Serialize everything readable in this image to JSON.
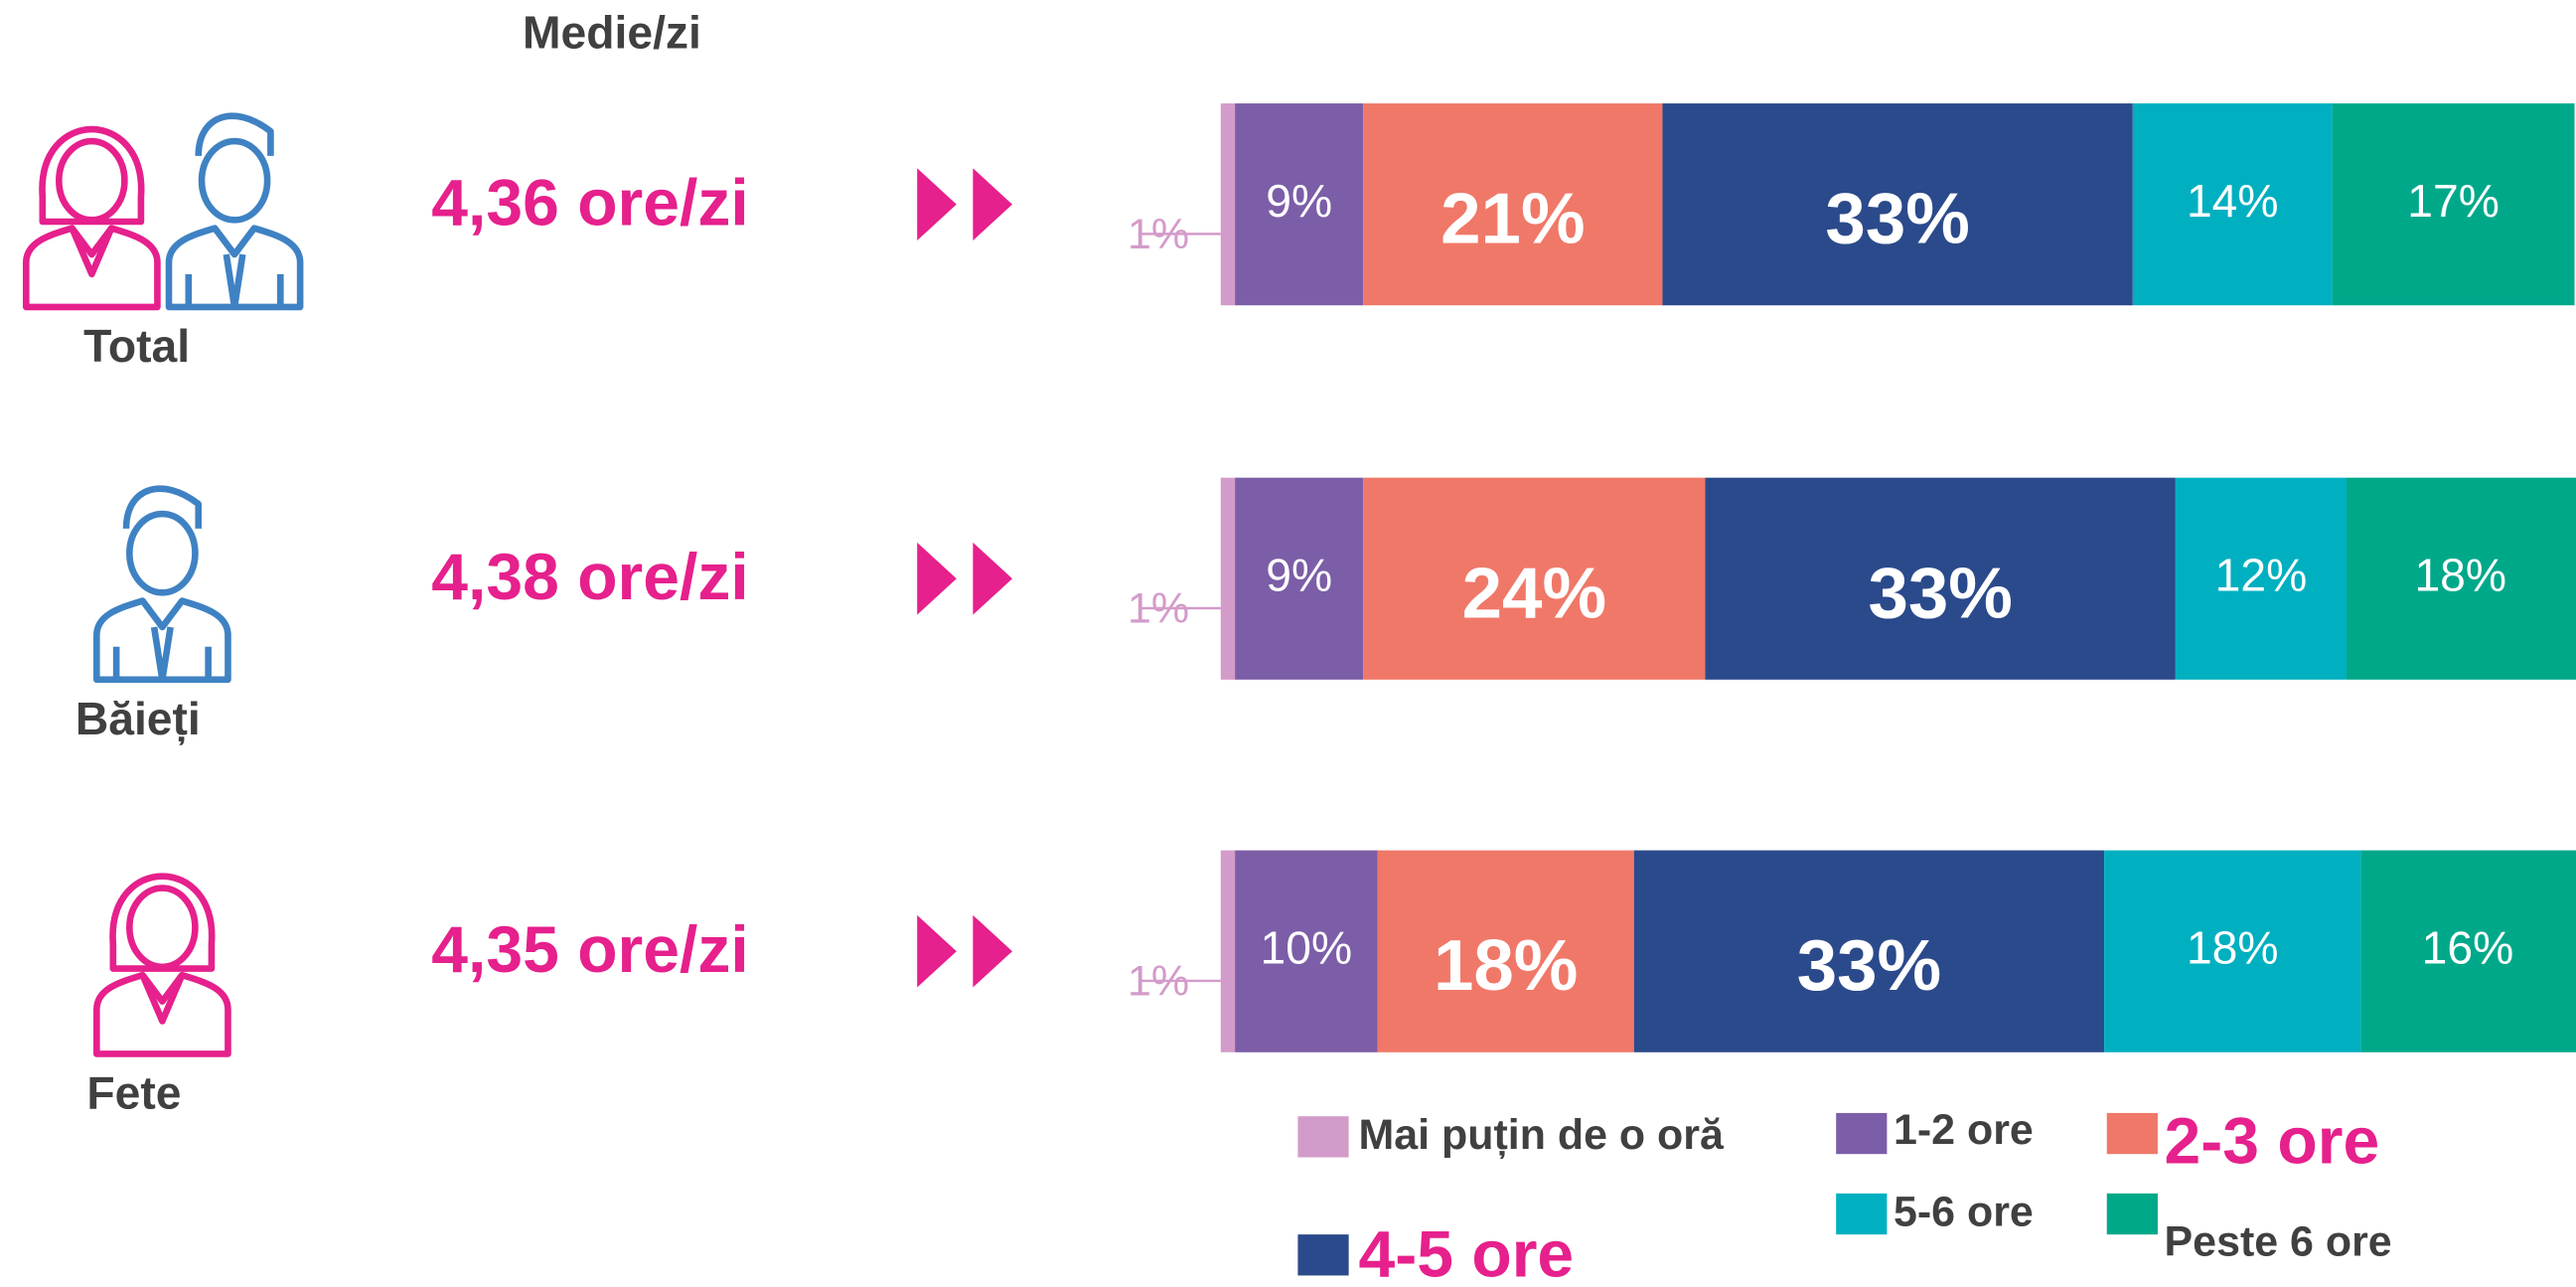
{
  "chart_data": {
    "type": "stacked-barh",
    "header": "Medie/zi",
    "categories": [
      "Total",
      "Băieți",
      "Fete"
    ],
    "averages": [
      "4,36 ore/zi",
      "4,38 ore/zi",
      "4,35 ore/zi"
    ],
    "xlim": [
      0,
      95
    ],
    "series": [
      {
        "name": "Mai puțin de o oră",
        "color": "#d39bc9",
        "values": [
          1,
          1,
          1
        ],
        "value_labels": [
          "1%",
          "1%",
          "1%"
        ]
      },
      {
        "name": "1-2 ore",
        "color": "#7b5ea7",
        "values": [
          9,
          9,
          10
        ],
        "value_labels": [
          "9%",
          "9%",
          "10%"
        ]
      },
      {
        "name": "2-3 ore",
        "color": "#f07868",
        "values": [
          21,
          24,
          18
        ],
        "value_labels": [
          "21%",
          "24%",
          "18%"
        ]
      },
      {
        "name": "4-5 ore",
        "color": "#2b4a8b",
        "values": [
          33,
          33,
          33
        ],
        "value_labels": [
          "33%",
          "33%",
          "33%"
        ]
      },
      {
        "name": "5-6 ore",
        "color": "#00b0c0",
        "values": [
          14,
          12,
          18
        ],
        "value_labels": [
          "14%",
          "12%",
          "18%"
        ]
      },
      {
        "name": "Peste 6 ore",
        "color": "#00a88a",
        "values": [
          17,
          18,
          16
        ],
        "value_labels": [
          "17%",
          "18%",
          "16%"
        ]
      }
    ]
  }
}
